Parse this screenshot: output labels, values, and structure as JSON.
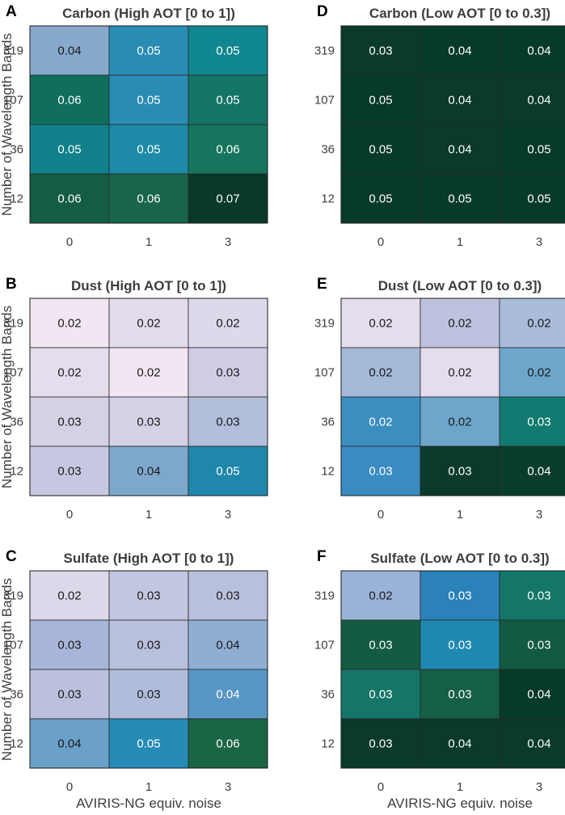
{
  "chart_data": {
    "type": "heatmap",
    "xlabel": "AVIRIS-NG equiv. noise",
    "ylabel": "Number of Wavelength Bands",
    "x_categories": [
      "0",
      "1",
      "3"
    ],
    "y_categories": [
      "319",
      "107",
      "36",
      "12"
    ],
    "panels": [
      {
        "letter": "A",
        "title": "Carbon (High AOT [0 to 1])",
        "values": [
          [
            "0.04",
            "0.05",
            "0.05"
          ],
          [
            "0.06",
            "0.05",
            "0.05"
          ],
          [
            "0.05",
            "0.05",
            "0.06"
          ],
          [
            "0.06",
            "0.06",
            "0.07"
          ]
        ],
        "colors": [
          [
            "#86a9cc",
            "#2a8cb4",
            "#10868f"
          ],
          [
            "#0f6e5c",
            "#2a8cb4",
            "#147566"
          ],
          [
            "#10808a",
            "#1d8aa8",
            "#16755c"
          ],
          [
            "#155c44",
            "#18654a",
            "#08392a"
          ]
        ]
      },
      {
        "letter": "D",
        "title": "Carbon (Low AOT [0 to 0.3])",
        "values": [
          [
            "0.03",
            "0.04",
            "0.04"
          ],
          [
            "0.05",
            "0.04",
            "0.04"
          ],
          [
            "0.05",
            "0.04",
            "0.05"
          ],
          [
            "0.05",
            "0.05",
            "0.05"
          ]
        ],
        "colors": [
          [
            "#093a2c",
            "#083a2b",
            "#083a2b"
          ],
          [
            "#083a2b",
            "#093a2c",
            "#093a2c"
          ],
          [
            "#083a2b",
            "#093a2c",
            "#083a2b"
          ],
          [
            "#083a2b",
            "#083a2b",
            "#083a2b"
          ]
        ]
      },
      {
        "letter": "B",
        "title": "Dust (High AOT [0 to 1])",
        "values": [
          [
            "0.02",
            "0.02",
            "0.02"
          ],
          [
            "0.02",
            "0.02",
            "0.03"
          ],
          [
            "0.03",
            "0.03",
            "0.03"
          ],
          [
            "0.03",
            "0.04",
            "0.05"
          ]
        ],
        "colors": [
          [
            "#f1e6f1",
            "#e2dcec",
            "#ddd8ea"
          ],
          [
            "#e4dded",
            "#f1e6f1",
            "#cfcde5"
          ],
          [
            "#d4d1e6",
            "#d5d2e7",
            "#b3bedb"
          ],
          [
            "#c6c8e1",
            "#7ea7cc",
            "#1f86ac"
          ]
        ]
      },
      {
        "letter": "E",
        "title": "Dust (Low AOT [0 to 0.3])",
        "values": [
          [
            "0.02",
            "0.02",
            "0.02"
          ],
          [
            "0.02",
            "0.02",
            "0.02"
          ],
          [
            "0.02",
            "0.02",
            "0.03"
          ],
          [
            "0.03",
            "0.03",
            "0.04"
          ]
        ],
        "colors": [
          [
            "#e5ddec",
            "#bdc3de",
            "#a9bcda"
          ],
          [
            "#a5b9d8",
            "#e5ddec",
            "#6ca7cb"
          ],
          [
            "#3d8ec0",
            "#6ca6cb",
            "#127a70"
          ],
          [
            "#3a8bc0",
            "#0a3a2c",
            "#0b3d2e"
          ]
        ]
      },
      {
        "letter": "C",
        "title": "Sulfate (High AOT [0 to 1])",
        "values": [
          [
            "0.02",
            "0.03",
            "0.03"
          ],
          [
            "0.03",
            "0.03",
            "0.04"
          ],
          [
            "0.03",
            "0.03",
            "0.04"
          ],
          [
            "0.04",
            "0.05",
            "0.06"
          ]
        ],
        "colors": [
          [
            "#dcd8ea",
            "#c3c6e0",
            "#b9c0dc"
          ],
          [
            "#a7b6d8",
            "#b9c0dc",
            "#8eaed2"
          ],
          [
            "#bbc1dd",
            "#b1bcda",
            "#5896c6"
          ],
          [
            "#6ba0c9",
            "#268bb6",
            "#1a6544"
          ]
        ]
      },
      {
        "letter": "F",
        "title": "Sulfate (Low AOT [0 to 0.3])",
        "values": [
          [
            "0.02",
            "0.03",
            "0.03"
          ],
          [
            "0.03",
            "0.03",
            "0.03"
          ],
          [
            "0.03",
            "0.03",
            "0.04"
          ],
          [
            "0.03",
            "0.04",
            "0.04"
          ]
        ],
        "colors": [
          [
            "#9ab2d6",
            "#2a82b8",
            "#137668"
          ],
          [
            "#135c42",
            "#1f88b0",
            "#125a42"
          ],
          [
            "#147568",
            "#145f45",
            "#083a2c"
          ],
          [
            "#093a2c",
            "#093a2c",
            "#093a2c"
          ]
        ]
      }
    ]
  }
}
